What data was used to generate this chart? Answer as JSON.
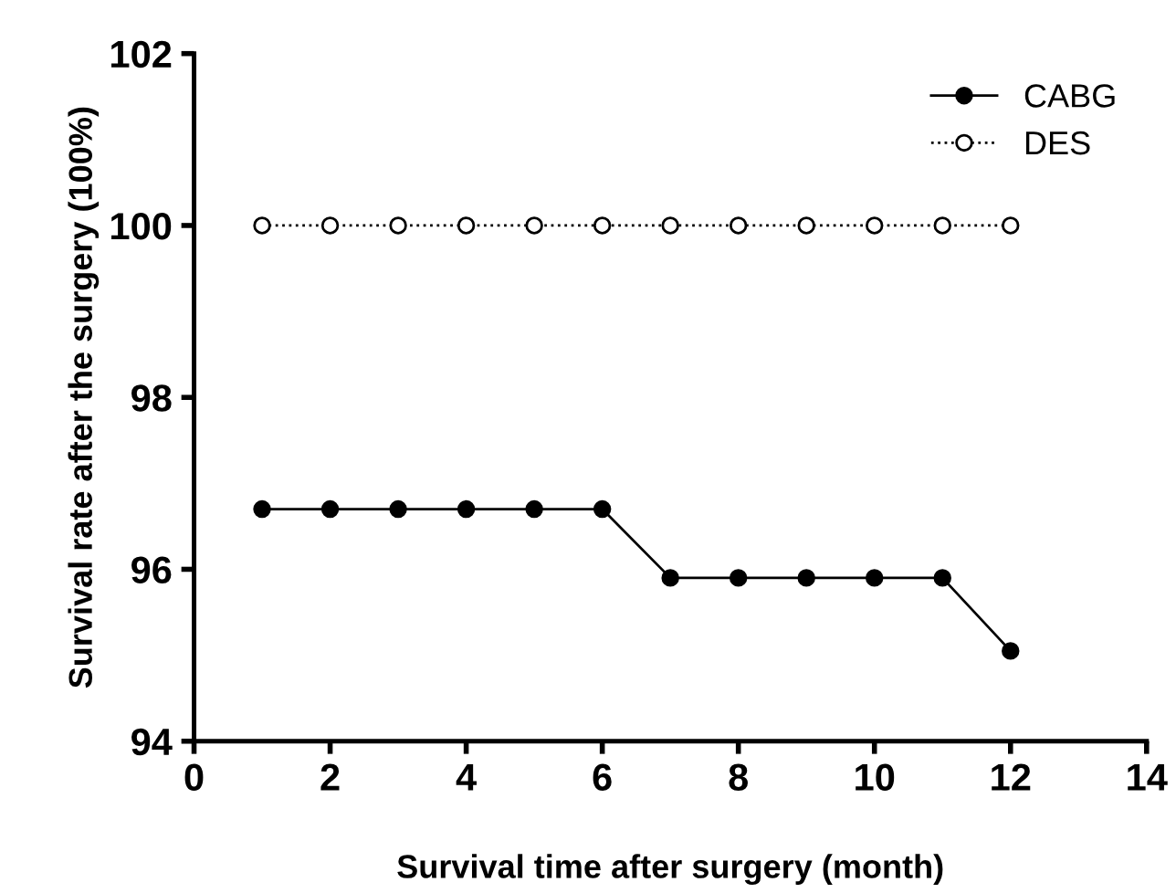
{
  "chart_data": {
    "type": "line",
    "xlabel": "Survival time after surgery (month)",
    "ylabel": "Survival rate after the surgery (100%)",
    "x": [
      1,
      2,
      3,
      4,
      5,
      6,
      7,
      8,
      9,
      10,
      11,
      12
    ],
    "series": [
      {
        "name": "CABG",
        "color": "#000000",
        "values": [
          96.7,
          96.7,
          96.7,
          96.7,
          96.7,
          96.7,
          95.9,
          95.9,
          95.9,
          95.9,
          95.9,
          95.05
        ],
        "marker": "circle",
        "line_style": "solid"
      },
      {
        "name": "DES",
        "color": "#000000",
        "values": [
          100,
          100,
          100,
          100,
          100,
          100,
          100,
          100,
          100,
          100,
          100,
          100
        ],
        "marker": "circle",
        "line_style": "dotted"
      }
    ],
    "xlim": [
      0,
      14
    ],
    "xticks": [
      0,
      2,
      4,
      6,
      8,
      10,
      12,
      14
    ],
    "ylim": [
      94,
      102
    ],
    "yticks": [
      94,
      96,
      98,
      100,
      102
    ],
    "grid": false,
    "legend": "top right"
  }
}
